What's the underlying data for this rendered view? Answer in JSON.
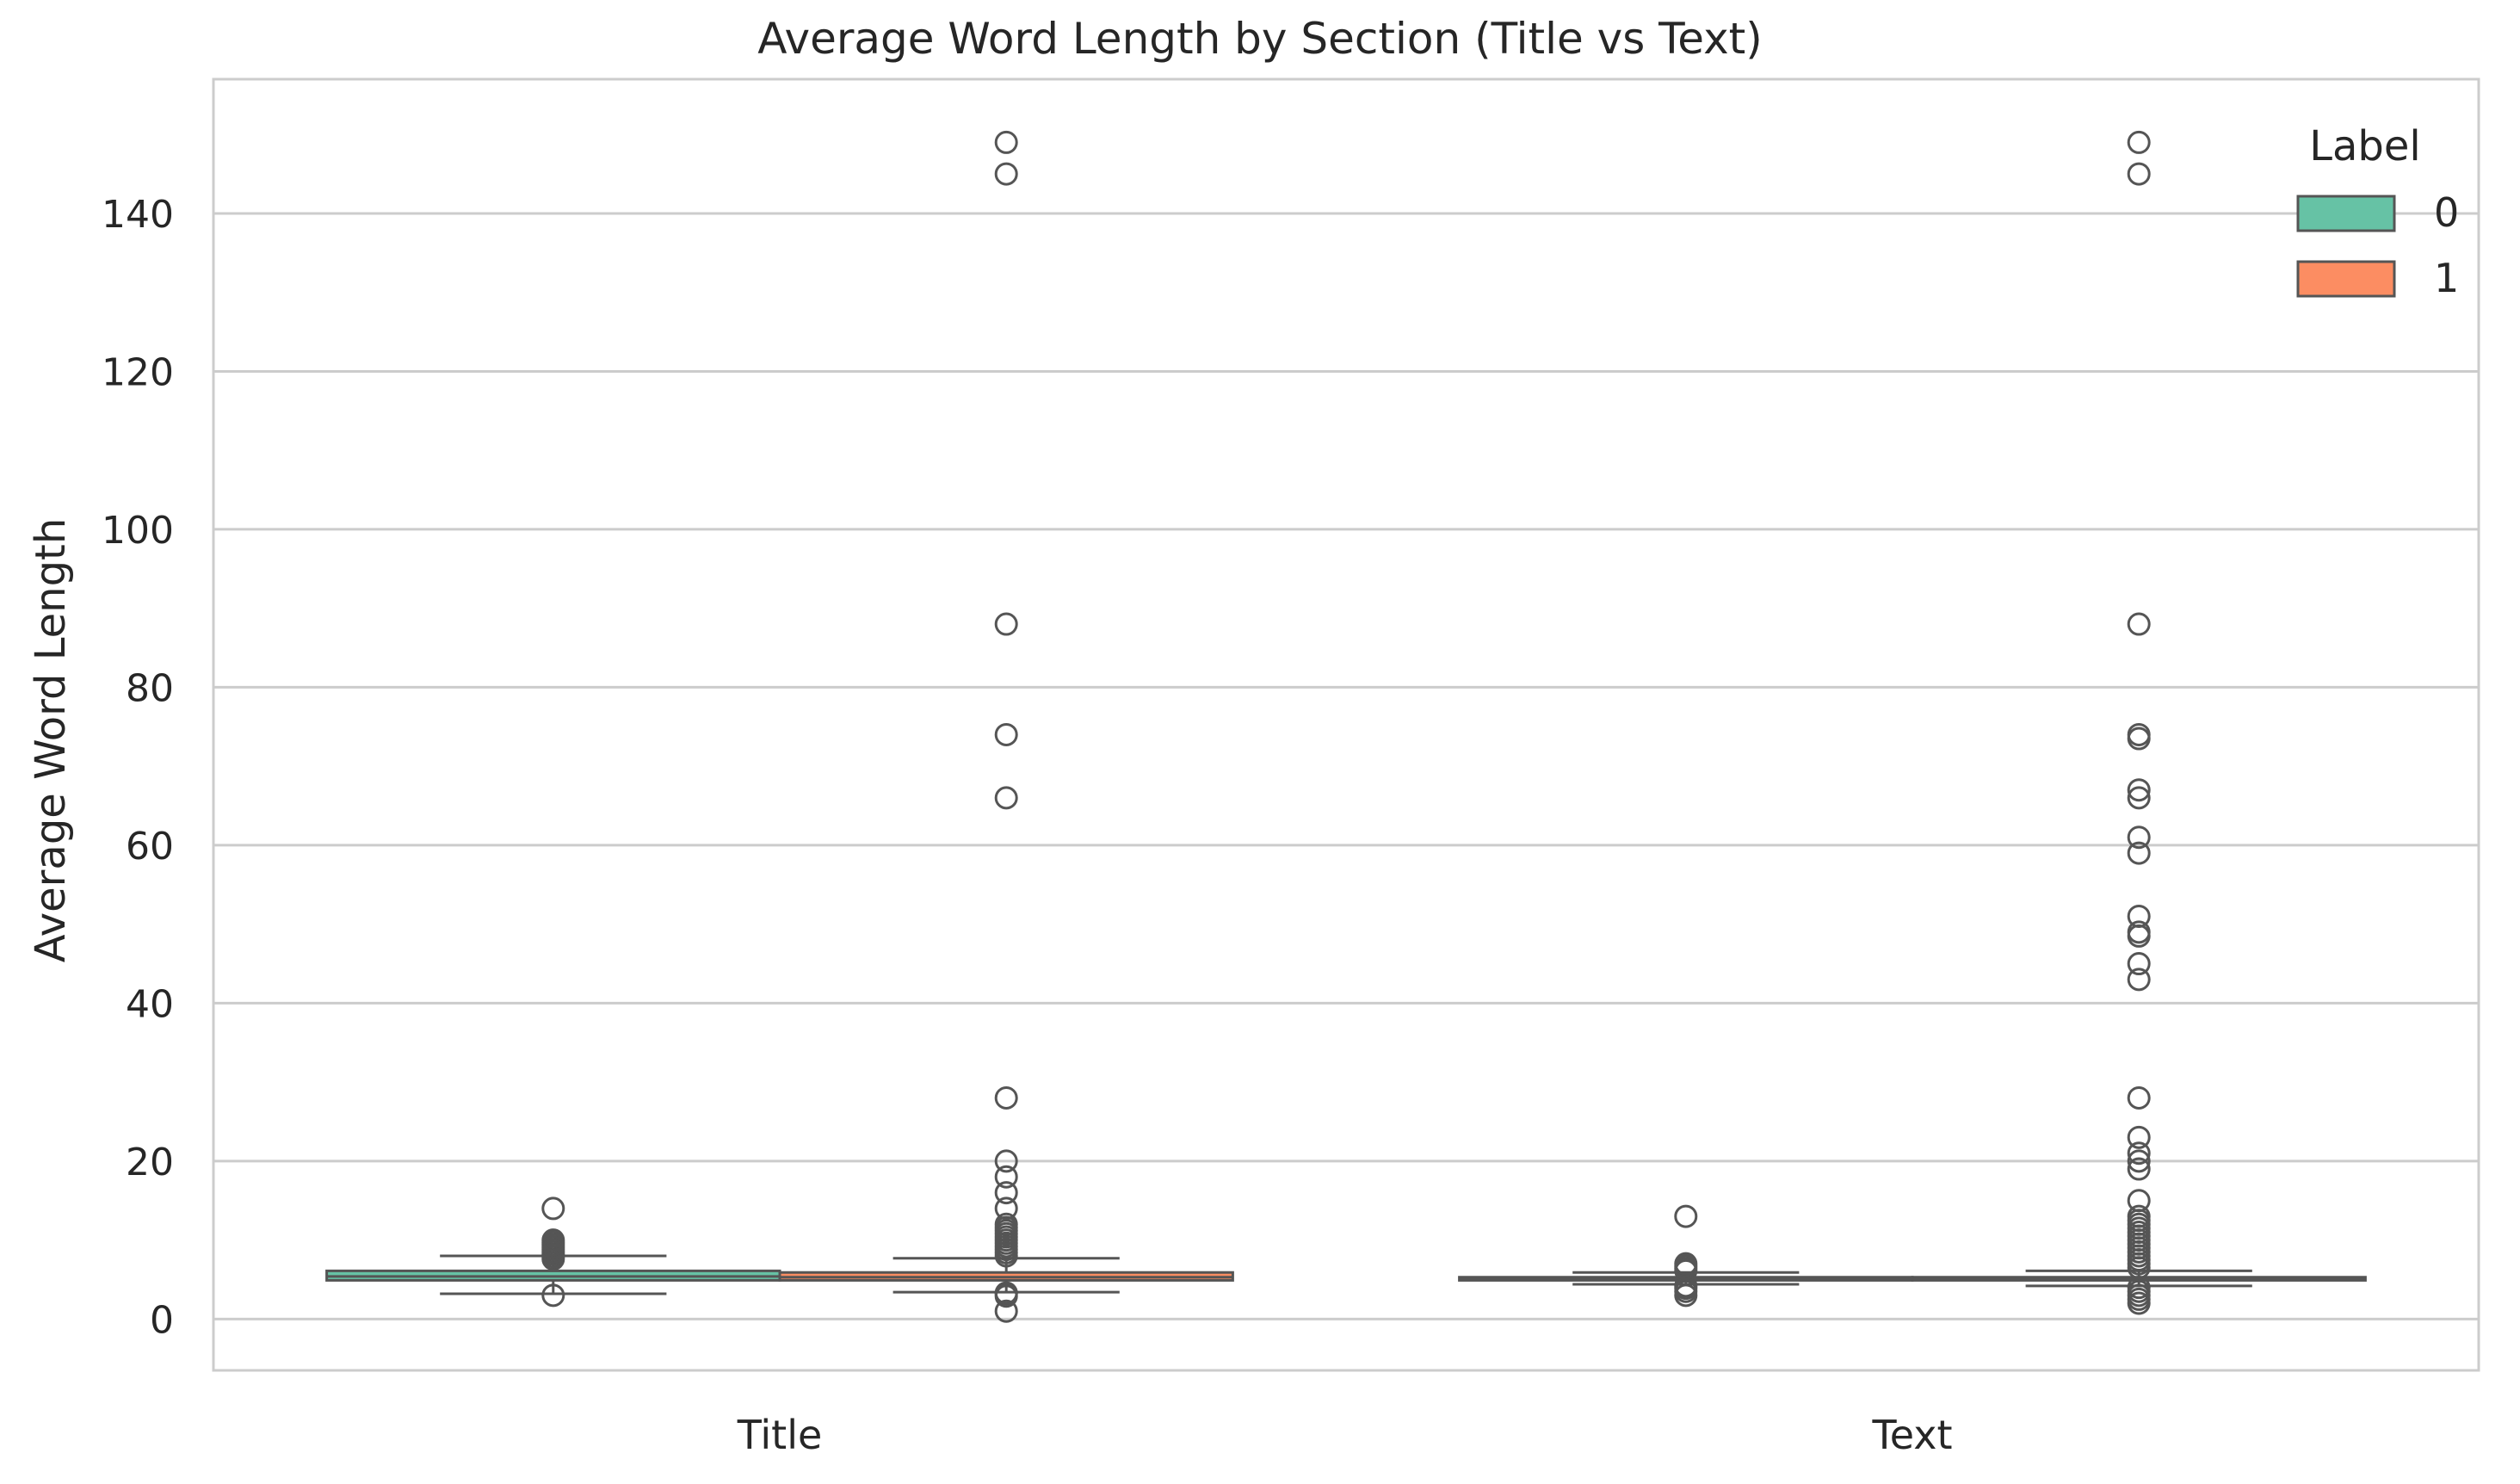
{
  "chart_data": {
    "type": "box",
    "title": "Average Word Length by Section (Title vs Text)",
    "xlabel": "",
    "ylabel": "Average Word Length",
    "categories": [
      "Title",
      "Text"
    ],
    "yticks": [
      0,
      20,
      40,
      60,
      80,
      100,
      120,
      140
    ],
    "ylim": [
      -6.5,
      157
    ],
    "grid": "horizontal",
    "legend": {
      "title": "Label",
      "placement": "top-right"
    },
    "series": [
      {
        "name": "0",
        "color": "#66c2a5",
        "boxes": [
          {
            "category": "Title",
            "whisker_low": 3.2,
            "q1": 4.9,
            "median": 5.4,
            "q3": 6.1,
            "whisker_high": 8.0,
            "outliers": [
              3.0,
              7.6,
              7.9,
              8.2,
              8.5,
              8.8,
              9.1,
              9.4,
              9.7,
              10.0,
              14.0
            ]
          },
          {
            "category": "Text",
            "whisker_low": 4.4,
            "q1": 4.9,
            "median": 5.1,
            "q3": 5.3,
            "whisker_high": 5.9,
            "outliers": [
              3.0,
              3.5,
              3.9,
              4.2,
              6.1,
              6.4,
              6.7,
              7.0,
              13.0
            ]
          }
        ]
      },
      {
        "name": "1",
        "color": "#fc8d62",
        "boxes": [
          {
            "category": "Title",
            "whisker_low": 3.4,
            "q1": 4.9,
            "median": 5.3,
            "q3": 5.9,
            "whisker_high": 7.7,
            "outliers": [
              1.0,
              2.9,
              3.2,
              3.3,
              8.0,
              8.4,
              8.8,
              9.2,
              9.6,
              10.0,
              10.4,
              10.8,
              11.2,
              11.6,
              12.0,
              14.0,
              16.0,
              18.0,
              20.0,
              28.0,
              66.0,
              74.0,
              88.0,
              145.0,
              149.0
            ]
          },
          {
            "category": "Text",
            "whisker_low": 4.2,
            "q1": 4.9,
            "median": 5.1,
            "q3": 5.3,
            "whisker_high": 6.1,
            "outliers": [
              2.0,
              2.5,
              3.0,
              3.5,
              4.0,
              6.5,
              7.0,
              7.5,
              8.0,
              8.5,
              9.0,
              9.5,
              10.0,
              10.5,
              11.0,
              11.5,
              12.0,
              12.5,
              13.0,
              15.0,
              19.0,
              20.0,
              21.0,
              23.0,
              28.0,
              43.0,
              45.0,
              48.5,
              49.0,
              51.0,
              59.0,
              61.0,
              66.0,
              67.0,
              73.5,
              74.0,
              88.0,
              145.0,
              149.0
            ]
          }
        ]
      }
    ]
  }
}
